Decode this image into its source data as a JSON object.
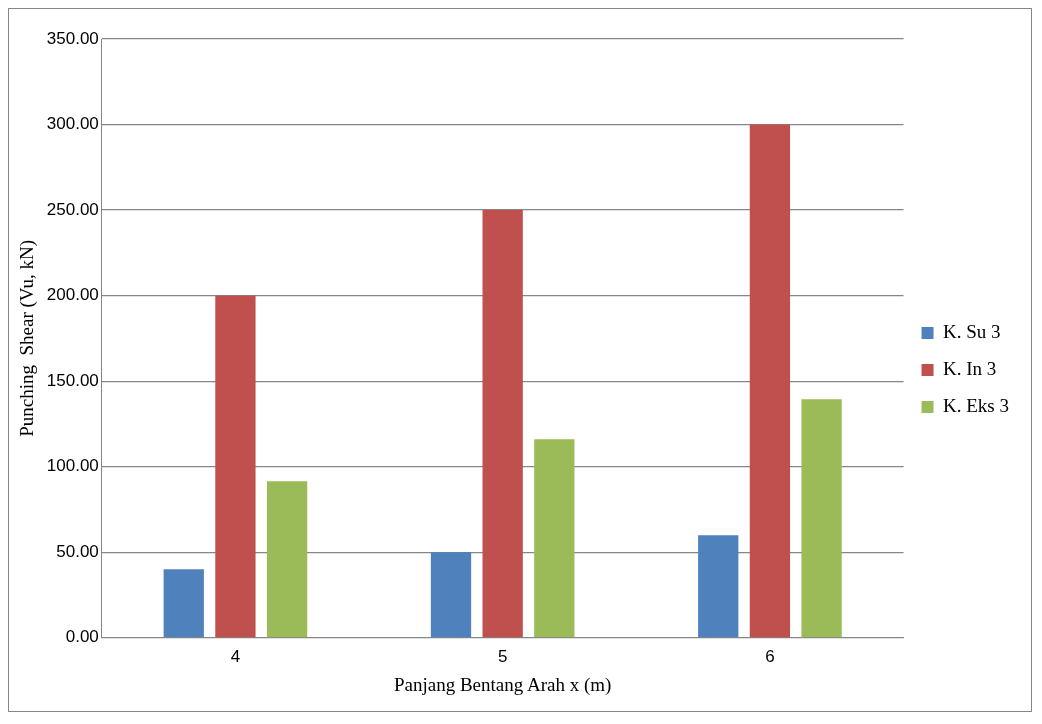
{
  "chart_data": {
    "type": "bar",
    "xlabel": "Panjang Bentang Arah x (m)",
    "ylabel": "Punching  Shear (Vu, kN)",
    "categories": [
      "4",
      "5",
      "6"
    ],
    "series": [
      {
        "name": "K. Su 3",
        "color": "#4f81bd",
        "values": [
          40,
          50,
          60
        ]
      },
      {
        "name": "K. In 3",
        "color": "#c0504d",
        "values": [
          200,
          250,
          300
        ]
      },
      {
        "name": "K. Eks 3",
        "color": "#9bbb59",
        "values": [
          91.5,
          116,
          139.5
        ]
      }
    ],
    "ylim": [
      0,
      350
    ],
    "yticks": [
      {
        "value": 0,
        "label": "0.00"
      },
      {
        "value": 50,
        "label": "50.00"
      },
      {
        "value": 100,
        "label": "100.00"
      },
      {
        "value": 150,
        "label": "150.00"
      },
      {
        "value": 200,
        "label": "200.00"
      },
      {
        "value": 250,
        "label": "250.00"
      },
      {
        "value": 300,
        "label": "300.00"
      },
      {
        "value": 350,
        "label": "350.00"
      }
    ],
    "grid": "y",
    "legend": "right"
  }
}
